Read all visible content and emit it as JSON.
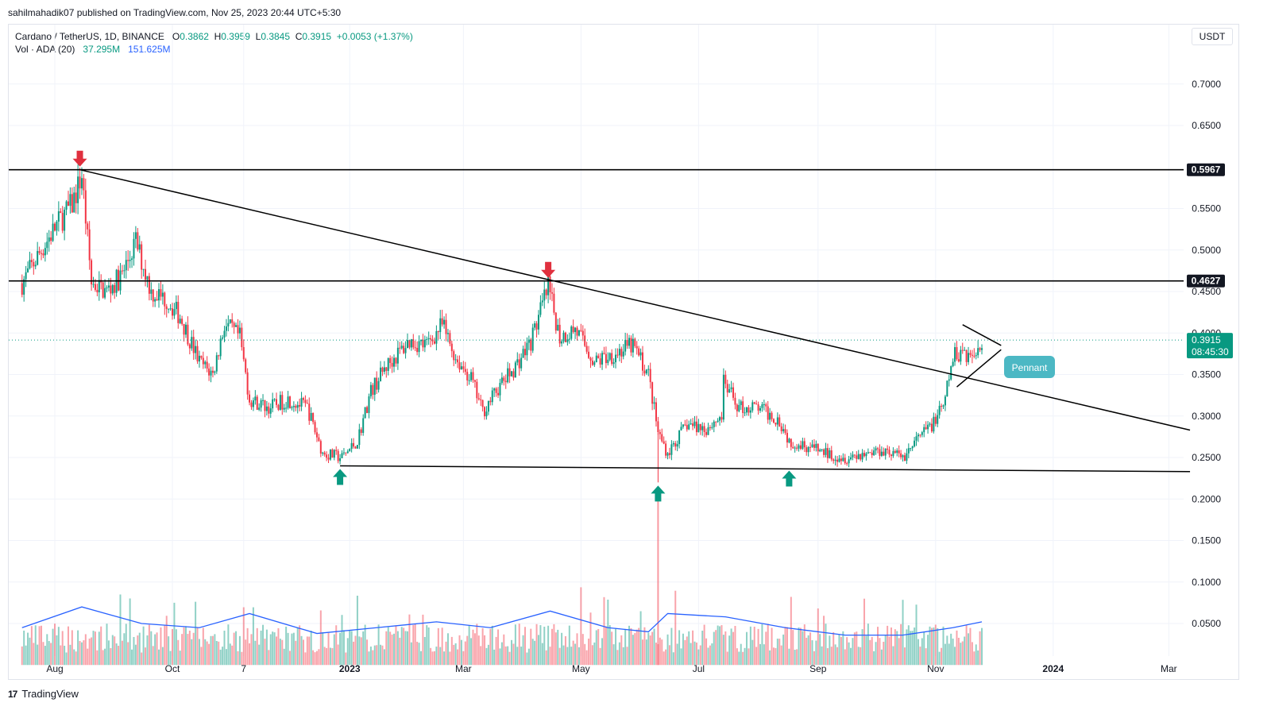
{
  "publisher_line": "sahilmahadik07 published on TradingView.com, Nov 25, 2023 20:44 UTC+5:30",
  "symbol": {
    "title": "Cardano / TetherUS, 1D, BINANCE",
    "o_label": "O",
    "o": "0.3862",
    "h_label": "H",
    "h": "0.3959",
    "l_label": "L",
    "l": "0.3845",
    "c_label": "C",
    "c": "0.3915",
    "change": "+0.0053 (+1.37%)"
  },
  "volume_legend": {
    "label": "Vol · ADA (20)",
    "vol": "37.295M",
    "ma": "151.625M"
  },
  "currency": "USDT",
  "footer": {
    "brand": "TradingView",
    "mark": "17"
  },
  "colors": {
    "up": "#089981",
    "down": "#f23645",
    "ma": "#2962ff",
    "line": "#000000",
    "pennant": "#4cb8c4",
    "arrow_down": "#e0303e"
  },
  "chart_data": {
    "type": "candlestick",
    "y_axis_labels": [
      "0.7000",
      "0.6500",
      "0.5967",
      "0.5500",
      "0.5000",
      "0.4627",
      "0.4500",
      "0.4000",
      "0.3915",
      "0.3500",
      "0.3000",
      "0.2500",
      "0.2000",
      "0.1500",
      "0.1000",
      "0.0500"
    ],
    "y_ticks": [
      0.7,
      0.65,
      0.55,
      0.5,
      0.45,
      0.4,
      0.35,
      0.3,
      0.25,
      0.2,
      0.15,
      0.1,
      0.05
    ],
    "x_labels": [
      "Aug",
      "Oct",
      "7",
      "2023",
      "Mar",
      "May",
      "Jul",
      "Sep",
      "Nov",
      "2024",
      "Mar"
    ],
    "price_tags": [
      {
        "label": "0.5967",
        "style": "dark"
      },
      {
        "label": "0.4627",
        "style": "dark"
      },
      {
        "label": "0.3915",
        "sub": "08:45:30",
        "style": "green"
      }
    ],
    "horizontal_levels": [
      0.5967,
      0.4627
    ],
    "last_price": 0.3915,
    "annotations": [
      {
        "text": "Pennant"
      }
    ],
    "price_path": [
      [
        "2022-07-15",
        0.46
      ],
      [
        "2022-07-25",
        0.5
      ],
      [
        "2022-08-02",
        0.53
      ],
      [
        "2022-08-10",
        0.555
      ],
      [
        "2022-08-15",
        0.59
      ],
      [
        "2022-08-20",
        0.46
      ],
      [
        "2022-08-28",
        0.45
      ],
      [
        "2022-09-05",
        0.47
      ],
      [
        "2022-09-12",
        0.51
      ],
      [
        "2022-09-20",
        0.45
      ],
      [
        "2022-09-28",
        0.44
      ],
      [
        "2022-10-05",
        0.42
      ],
      [
        "2022-10-15",
        0.365
      ],
      [
        "2022-10-22",
        0.35
      ],
      [
        "2022-10-28",
        0.41
      ],
      [
        "2022-11-05",
        0.395
      ],
      [
        "2022-11-10",
        0.32
      ],
      [
        "2022-11-20",
        0.31
      ],
      [
        "2022-11-30",
        0.32
      ],
      [
        "2022-12-10",
        0.31
      ],
      [
        "2022-12-18",
        0.255
      ],
      [
        "2022-12-28",
        0.25
      ],
      [
        "2023-01-05",
        0.27
      ],
      [
        "2023-01-12",
        0.33
      ],
      [
        "2023-01-20",
        0.36
      ],
      [
        "2023-02-01",
        0.39
      ],
      [
        "2023-02-10",
        0.385
      ],
      [
        "2023-02-18",
        0.41
      ],
      [
        "2023-02-25",
        0.37
      ],
      [
        "2023-03-05",
        0.345
      ],
      [
        "2023-03-11",
        0.305
      ],
      [
        "2023-03-18",
        0.33
      ],
      [
        "2023-03-28",
        0.36
      ],
      [
        "2023-04-05",
        0.39
      ],
      [
        "2023-04-14",
        0.455
      ],
      [
        "2023-04-20",
        0.395
      ],
      [
        "2023-04-28",
        0.405
      ],
      [
        "2023-05-08",
        0.365
      ],
      [
        "2023-05-18",
        0.375
      ],
      [
        "2023-05-28",
        0.385
      ],
      [
        "2023-06-05",
        0.35
      ],
      [
        "2023-06-10",
        0.28
      ],
      [
        "2023-06-15",
        0.255
      ],
      [
        "2023-06-25",
        0.29
      ],
      [
        "2023-07-05",
        0.285
      ],
      [
        "2023-07-13",
        0.3
      ],
      [
        "2023-07-14",
        0.34
      ],
      [
        "2023-07-22",
        0.31
      ],
      [
        "2023-08-01",
        0.31
      ],
      [
        "2023-08-12",
        0.295
      ],
      [
        "2023-08-17",
        0.27
      ],
      [
        "2023-08-25",
        0.265
      ],
      [
        "2023-09-05",
        0.255
      ],
      [
        "2023-09-15",
        0.25
      ],
      [
        "2023-09-25",
        0.255
      ],
      [
        "2023-10-05",
        0.26
      ],
      [
        "2023-10-15",
        0.25
      ],
      [
        "2023-10-22",
        0.27
      ],
      [
        "2023-10-30",
        0.29
      ],
      [
        "2023-11-05",
        0.31
      ],
      [
        "2023-11-10",
        0.37
      ],
      [
        "2023-11-15",
        0.38
      ],
      [
        "2023-11-20",
        0.37
      ],
      [
        "2023-11-25",
        0.3915
      ]
    ],
    "volume_ma_path": [
      [
        "2022-07-15",
        0.045
      ],
      [
        "2022-08-15",
        0.07
      ],
      [
        "2022-09-15",
        0.05
      ],
      [
        "2022-10-15",
        0.045
      ],
      [
        "2022-11-10",
        0.062
      ],
      [
        "2022-12-15",
        0.038
      ],
      [
        "2023-01-15",
        0.045
      ],
      [
        "2023-02-15",
        0.052
      ],
      [
        "2023-03-15",
        0.045
      ],
      [
        "2023-04-15",
        0.065
      ],
      [
        "2023-05-15",
        0.045
      ],
      [
        "2023-06-05",
        0.04
      ],
      [
        "2023-06-15",
        0.062
      ],
      [
        "2023-07-15",
        0.058
      ],
      [
        "2023-08-15",
        0.045
      ],
      [
        "2023-09-15",
        0.036
      ],
      [
        "2023-10-15",
        0.036
      ],
      [
        "2023-11-10",
        0.045
      ],
      [
        "2023-11-25",
        0.052
      ]
    ],
    "trendlines": [
      {
        "name": "descending-trendline",
        "from": [
          "2022-08-14",
          0.5967
        ],
        "to": [
          "2024-03-12",
          0.283
        ]
      },
      {
        "name": "support-line",
        "from": [
          "2022-12-27",
          0.24
        ],
        "to": [
          "2024-03-12",
          0.233
        ]
      },
      {
        "name": "pennant-upper",
        "from": [
          "2023-11-15",
          0.41
        ],
        "to": [
          "2023-12-05",
          0.385
        ]
      },
      {
        "name": "pennant-lower",
        "from": [
          "2023-11-12",
          0.335
        ],
        "to": [
          "2023-12-05",
          0.38
        ]
      }
    ],
    "arrows": [
      {
        "dir": "down",
        "date": "2022-08-14",
        "price": 0.5967
      },
      {
        "dir": "down",
        "date": "2023-04-14",
        "price": 0.4627
      },
      {
        "dir": "up",
        "date": "2022-12-27",
        "price": 0.24
      },
      {
        "dir": "up",
        "date": "2023-06-10",
        "price": 0.22
      },
      {
        "dir": "up",
        "date": "2023-08-17",
        "price": 0.238
      }
    ]
  }
}
